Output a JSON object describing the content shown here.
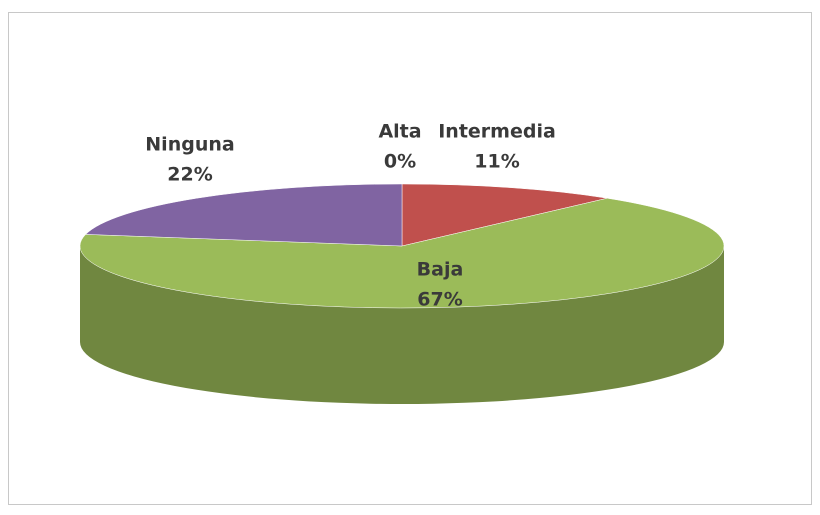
{
  "chart_data": {
    "type": "pie3d",
    "categories": [
      "Alta",
      "Intermedia",
      "Baja",
      "Ninguna"
    ],
    "values": [
      0,
      11,
      67,
      22
    ],
    "value_labels": [
      "0%",
      "11%",
      "67%",
      "22%"
    ],
    "colors": [
      "#4f81bd",
      "#c0504d",
      "#9bbb59",
      "#8064a2"
    ]
  }
}
